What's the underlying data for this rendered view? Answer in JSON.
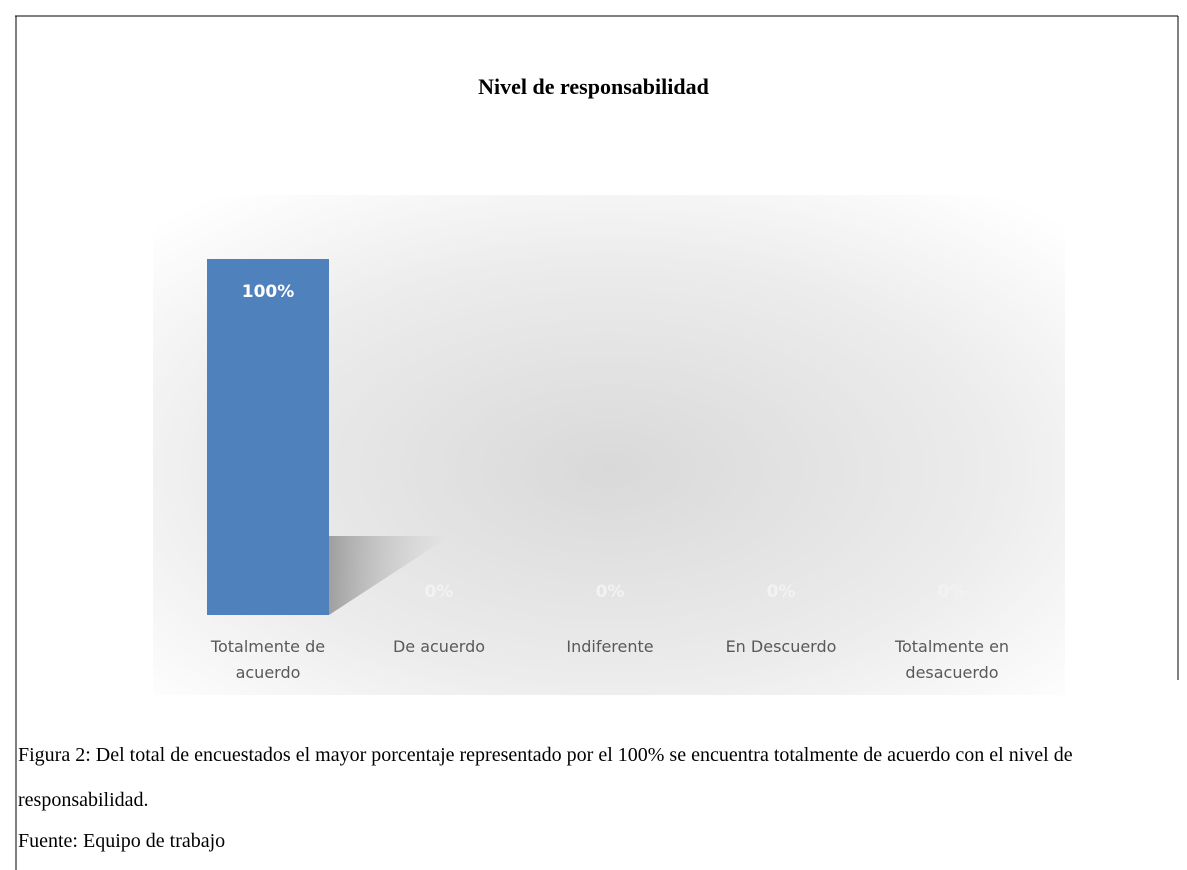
{
  "chart_data": {
    "type": "bar",
    "title": "Nivel de responsabilidad",
    "categories": [
      "Totalmente de acuerdo",
      "De acuerdo",
      "Indiferente",
      "En Descuerdo",
      "Totalmente en desacuerdo"
    ],
    "values": [
      100,
      0,
      0,
      0,
      0
    ],
    "value_labels": [
      "100%",
      "0%",
      "0%",
      "0%",
      "0%"
    ],
    "color": "#4f81bd"
  },
  "caption": "Figura 2: Del total de encuestados el mayor porcentaje representado por el 100% se encuentra totalmente de acuerdo con el nivel de responsabilidad.",
  "source": "Fuente: Equipo de trabajo"
}
